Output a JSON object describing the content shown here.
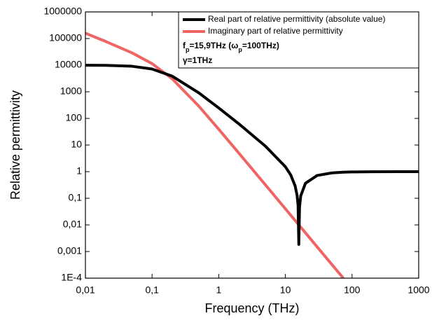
{
  "chart_data": {
    "type": "line",
    "x_label": "Frequency (THz)",
    "y_label": "Relative permittivity",
    "xscale": "log",
    "yscale": "log",
    "xlim": [
      0.01,
      1000
    ],
    "ylim": [
      0.0001,
      1000000
    ],
    "xticks": [
      {
        "value": 0.01,
        "label": "0,01"
      },
      {
        "value": 0.1,
        "label": "0,1"
      },
      1,
      10,
      100,
      1000
    ],
    "yticks": [
      {
        "value": 0.0001,
        "label": "1E-4"
      },
      {
        "value": 0.001,
        "label": "0,001"
      },
      {
        "value": 0.01,
        "label": "0,01"
      },
      {
        "value": 0.1,
        "label": "0,1"
      },
      1,
      10,
      100,
      1000,
      10000,
      100000,
      1000000
    ],
    "legend": "upper right",
    "x": [
      0.01,
      0.02,
      0.05,
      0.1,
      0.2,
      0.5,
      1,
      2,
      5,
      10,
      12,
      14,
      15,
      15.5,
      15.9,
      16.3,
      17,
      20,
      30,
      50,
      74,
      100,
      200,
      500,
      1000
    ],
    "series": [
      {
        "name": "Real part of relative permittivity (absolute value)",
        "color": "#000000",
        "values": [
          9960,
          9844,
          9102,
          7169,
          3877,
          920,
          247,
          62.9,
          9.12,
          1.532,
          0.759,
          0.2922,
          0.1257,
          0.0542,
          0.00185,
          0.0468,
          0.1236,
          0.3668,
          0.7186,
          0.8987,
          0.9537,
          0.9747,
          0.9937,
          0.999,
          0.9997
        ]
      },
      {
        "name": "Imaginary part of relative permittivity",
        "color": "#f06464",
        "values": [
          158540,
          78310,
          28980,
          11410,
          3086,
          292.8,
          39.3,
          5.01,
          0.322,
          0.0403,
          0.0233,
          0.0147,
          0.01194,
          0.01083,
          0.01003,
          0.00931,
          0.00821,
          0.00504,
          0.00149,
          0.000322,
          0.0001,
          null,
          null,
          null,
          null
        ]
      }
    ],
    "annotations": [
      [
        "f",
        "p",
        "=15,9THz (ω",
        "p",
        "=100THz)"
      ],
      [
        "γ=1THz"
      ]
    ]
  }
}
